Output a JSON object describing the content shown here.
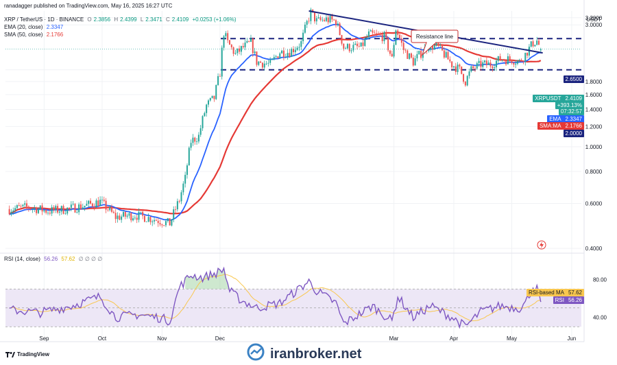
{
  "header": {
    "published": "ranadagger published on TradingView.com, May 16, 2025 16:27 UTC",
    "symbol": "XRP / TetherUS · 1D · BINANCE",
    "ohlc": [
      {
        "k": "O",
        "v": "2.3856"
      },
      {
        "k": "H",
        "v": "2.4399"
      },
      {
        "k": "L",
        "v": "2.3471"
      },
      {
        "k": "C",
        "v": "2.4109"
      },
      {
        "k": "",
        "v": "+0.0253 (+1.06%)"
      }
    ],
    "ema_label": "EMA (20, close)",
    "ema_value": "2.3347",
    "sma_label": "SMA (50, close)",
    "sma_value": "2.1766",
    "rsi_label": "RSI (14, close)",
    "rsi_value": "56.26",
    "rsi_ma_value": "57.62",
    "rsi_zeros": "∅ ∅ ∅ ∅"
  },
  "axis": {
    "currency": "USDT",
    "price_ticks": [
      "3.2000",
      "3.0000",
      "2.6500",
      "2.4109",
      "2.3347",
      "2.1766",
      "2.0000",
      "1.8000",
      "1.6000",
      "1.4000",
      "1.2000",
      "1.0000",
      "0.8000",
      "0.6000",
      "0.4000"
    ],
    "rsi_ticks": [
      "80.00",
      "40.00"
    ],
    "months": [
      "Sep",
      "Oct",
      "Nov",
      "Dec",
      "Mar",
      "Apr",
      "May",
      "Jun"
    ]
  },
  "labels": {
    "price_tag": "XRPUSDT",
    "price_value": "2.4109",
    "price_change": "+393.13%",
    "countdown": "07:32:57",
    "ema_tag": "EMA",
    "ema_value": "2.3347",
    "sma_tag": "SMA:MA",
    "sma_value": "2.1766",
    "level_high": "2.6500",
    "level_low": "2.0000",
    "rsi_ma_tag": "RSI-based MA",
    "rsi_ma_value": "57.62",
    "rsi_tag": "RSI",
    "rsi_value": "56.26"
  },
  "annotation": {
    "resistance": "Resistance line"
  },
  "footer": {
    "brand": "TradingView",
    "watermark": "iranbroker.net"
  },
  "colors": {
    "up": "#26a69a",
    "down": "#ef5350",
    "ema": "#2962ff",
    "sma": "#e53935",
    "level": "#1a237e",
    "rsi": "#7e57c2",
    "rsi_ma": "#f9c74f",
    "rsi_band": "#ede7f6",
    "annotation": "#c62828"
  },
  "chart_data": {
    "type": "candlestick",
    "timeframe": "1D",
    "scale": "log",
    "ylim": [
      0.4,
      3.4
    ],
    "price_path": [
      [
        "2024-08-14",
        0.57
      ],
      [
        "2024-08-24",
        0.58
      ],
      [
        "2024-09-03",
        0.56
      ],
      [
        "2024-09-13",
        0.57
      ],
      [
        "2024-09-23",
        0.59
      ],
      [
        "2024-09-30",
        0.61
      ],
      [
        "2024-10-08",
        0.53
      ],
      [
        "2024-10-18",
        0.54
      ],
      [
        "2024-10-28",
        0.52
      ],
      [
        "2024-11-05",
        0.5
      ],
      [
        "2024-11-10",
        0.62
      ],
      [
        "2024-11-13",
        0.75
      ],
      [
        "2024-11-16",
        1.05
      ],
      [
        "2024-11-20",
        1.1
      ],
      [
        "2024-11-24",
        1.45
      ],
      [
        "2024-11-28",
        1.55
      ],
      [
        "2024-12-01",
        1.95
      ],
      [
        "2024-12-03",
        2.8
      ],
      [
        "2024-12-05",
        2.55
      ],
      [
        "2024-12-09",
        2.3
      ],
      [
        "2024-12-13",
        2.45
      ],
      [
        "2024-12-17",
        2.55
      ],
      [
        "2024-12-20",
        2.15
      ],
      [
        "2024-12-27",
        2.1
      ],
      [
        "2025-01-01",
        2.35
      ],
      [
        "2025-01-06",
        2.35
      ],
      [
        "2025-01-12",
        2.55
      ],
      [
        "2025-01-15",
        3.05
      ],
      [
        "2025-01-17",
        3.35
      ],
      [
        "2025-01-20",
        3.1
      ],
      [
        "2025-01-25",
        3.15
      ],
      [
        "2025-01-30",
        3.1
      ],
      [
        "2025-02-03",
        2.45
      ],
      [
        "2025-02-07",
        2.45
      ],
      [
        "2025-02-12",
        2.45
      ],
      [
        "2025-02-16",
        2.75
      ],
      [
        "2025-02-24",
        2.7
      ],
      [
        "2025-02-28",
        2.2
      ],
      [
        "2025-03-02",
        2.9
      ],
      [
        "2025-03-06",
        2.4
      ],
      [
        "2025-03-11",
        2.15
      ],
      [
        "2025-03-19",
        2.5
      ],
      [
        "2025-03-24",
        2.45
      ],
      [
        "2025-03-31",
        2.1
      ],
      [
        "2025-04-04",
        2.0
      ],
      [
        "2025-04-07",
        1.8
      ],
      [
        "2025-04-10",
        2.0
      ],
      [
        "2025-04-15",
        2.1
      ],
      [
        "2025-04-20",
        2.1
      ],
      [
        "2025-04-25",
        2.2
      ],
      [
        "2025-05-01",
        2.2
      ],
      [
        "2025-05-05",
        2.15
      ],
      [
        "2025-05-08",
        2.3
      ],
      [
        "2025-05-12",
        2.55
      ],
      [
        "2025-05-14",
        2.6
      ],
      [
        "2025-05-16",
        2.41
      ]
    ],
    "ema_20": {
      "last": 2.3347
    },
    "sma_50": {
      "last": 2.1766
    },
    "last_ohlc": {
      "open": 2.3856,
      "high": 2.4399,
      "low": 2.3471,
      "close": 2.4109
    },
    "change": 0.0253,
    "change_pct": 1.06,
    "levels": [
      2.65,
      2.0
    ],
    "resistance_line": {
      "from": [
        "2025-01-16",
        3.4
      ],
      "to": [
        "2025-05-17",
        2.33
      ]
    },
    "rsi_14": {
      "last": 56.26,
      "ma_last": 57.62,
      "ylim": [
        20,
        100
      ],
      "band": [
        30,
        70
      ],
      "path": [
        [
          "2024-08-14",
          48
        ],
        [
          "2024-08-30",
          45
        ],
        [
          "2024-09-15",
          52
        ],
        [
          "2024-09-30",
          62
        ],
        [
          "2024-10-08",
          40
        ],
        [
          "2024-10-20",
          43
        ],
        [
          "2024-11-01",
          39
        ],
        [
          "2024-11-05",
          36
        ],
        [
          "2024-11-10",
          72
        ],
        [
          "2024-11-16",
          85
        ],
        [
          "2024-11-22",
          82
        ],
        [
          "2024-11-28",
          86
        ],
        [
          "2024-12-03",
          91
        ],
        [
          "2024-12-06",
          68
        ],
        [
          "2024-12-12",
          58
        ],
        [
          "2024-12-20",
          50
        ],
        [
          "2025-01-01",
          55
        ],
        [
          "2025-01-16",
          78
        ],
        [
          "2025-01-20",
          68
        ],
        [
          "2025-01-30",
          55
        ],
        [
          "2025-02-03",
          33
        ],
        [
          "2025-02-10",
          42
        ],
        [
          "2025-02-18",
          52
        ],
        [
          "2025-02-28",
          36
        ],
        [
          "2025-03-03",
          62
        ],
        [
          "2025-03-11",
          40
        ],
        [
          "2025-03-20",
          52
        ],
        [
          "2025-03-31",
          40
        ],
        [
          "2025-04-07",
          30
        ],
        [
          "2025-04-15",
          46
        ],
        [
          "2025-04-25",
          52
        ],
        [
          "2025-05-05",
          50
        ],
        [
          "2025-05-08",
          55
        ],
        [
          "2025-05-12",
          72
        ],
        [
          "2025-05-14",
          70
        ],
        [
          "2025-05-16",
          56.26
        ]
      ]
    }
  }
}
